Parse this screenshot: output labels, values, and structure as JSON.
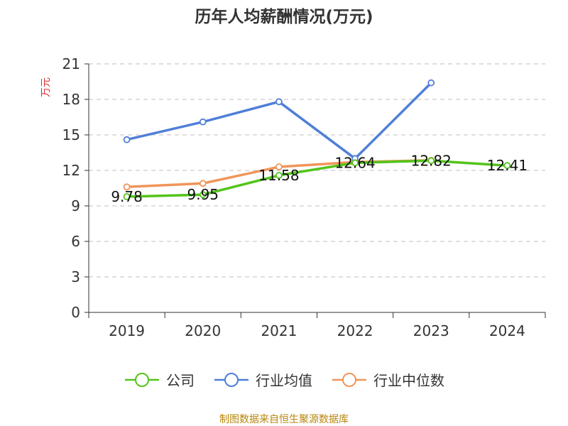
{
  "chart_data": {
    "type": "line",
    "title": "历年人均薪酬情况(万元)",
    "ylabel": "万元",
    "xlabel": "",
    "categories": [
      "2019",
      "2020",
      "2021",
      "2022",
      "2023",
      "2024"
    ],
    "ylim": [
      0,
      21
    ],
    "yticks": [
      0,
      3,
      6,
      9,
      12,
      15,
      18,
      21
    ],
    "grid": true,
    "legend_position": "bottom",
    "series": [
      {
        "name": "公司",
        "color": "#52c41a",
        "values": [
          9.78,
          9.95,
          11.58,
          12.64,
          12.82,
          12.41
        ],
        "show_labels": true
      },
      {
        "name": "行业均值",
        "color": "#4f7fd8",
        "values": [
          14.6,
          16.1,
          17.8,
          13.0,
          19.4,
          null
        ],
        "show_labels": false
      },
      {
        "name": "行业中位数",
        "color": "#f0955a",
        "values": [
          10.6,
          10.9,
          12.3,
          12.7,
          12.85,
          null
        ],
        "show_labels": false
      }
    ]
  },
  "source_note": "制图数据来自恒生聚源数据库"
}
